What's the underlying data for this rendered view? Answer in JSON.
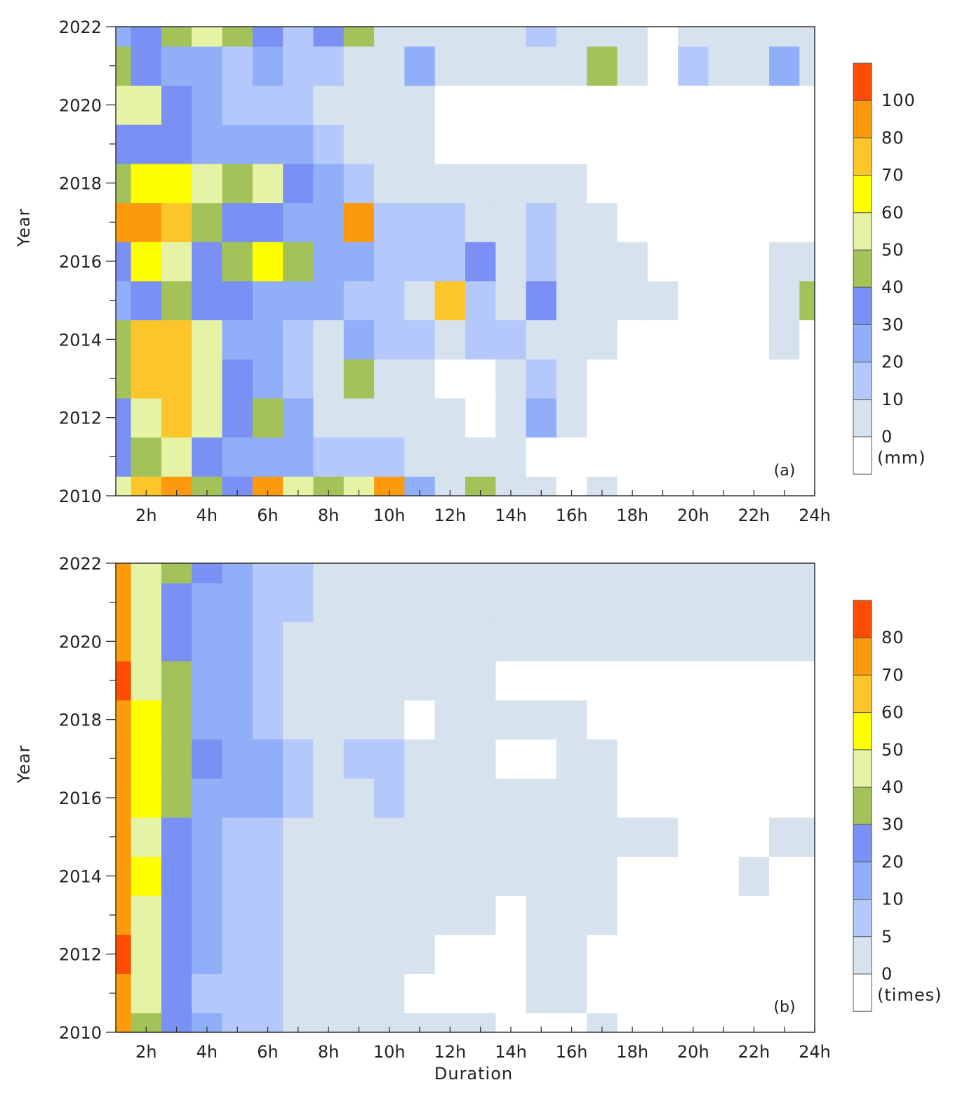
{
  "chart_data": [
    {
      "type": "heatmap",
      "panel_label": "(a)",
      "xlabel": "",
      "ylabel": "Year",
      "x_tick_labels": [
        "2h",
        "4h",
        "6h",
        "8h",
        "10h",
        "12h",
        "14h",
        "16h",
        "18h",
        "20h",
        "22h",
        "24h"
      ],
      "x_tick_values": [
        2,
        4,
        6,
        8,
        10,
        12,
        14,
        16,
        18,
        20,
        22,
        24
      ],
      "y_tick_labels": [
        "2010",
        "2012",
        "2014",
        "2016",
        "2018",
        "2020",
        "2022"
      ],
      "y_tick_values": [
        2010,
        2012,
        2014,
        2016,
        2018,
        2020,
        2022
      ],
      "xlim": [
        1,
        24
      ],
      "ylim": [
        2010,
        2022
      ],
      "colorbar": {
        "unit_label": "(mm)",
        "levels": [
          0,
          10,
          20,
          30,
          40,
          50,
          60,
          70,
          80,
          100
        ],
        "level_labels": [
          "0",
          "10",
          "20",
          "30",
          "40",
          "50",
          "60",
          "70",
          "80",
          "100"
        ],
        "colors": [
          "#ffffff",
          "#d6e2ee",
          "#b4c8fb",
          "#91aef8",
          "#7a90f4",
          "#a3c35a",
          "#e5f4a4",
          "#ffff00",
          "#fcc52a",
          "#fb9a0c",
          "#fe4c00"
        ]
      },
      "x": [
        1,
        2,
        3,
        4,
        5,
        6,
        7,
        8,
        9,
        10,
        11,
        12,
        13,
        14,
        15,
        16,
        17,
        18,
        19,
        20,
        21,
        22,
        23,
        24
      ],
      "y": [
        2010,
        2011,
        2012,
        2013,
        2014,
        2015,
        2016,
        2017,
        2018,
        2019,
        2020,
        2021,
        2022
      ],
      "z": [
        [
          55,
          72,
          90,
          45,
          32,
          95,
          58,
          45,
          52,
          88,
          30,
          8,
          45,
          8,
          2,
          0,
          8,
          0,
          0,
          0,
          0,
          0,
          0,
          0
        ],
        [
          32,
          48,
          55,
          38,
          22,
          30,
          25,
          18,
          12,
          15,
          8,
          5,
          5,
          3,
          0,
          0,
          0,
          0,
          0,
          0,
          0,
          0,
          0,
          0
        ],
        [
          35,
          55,
          72,
          55,
          35,
          42,
          25,
          10,
          8,
          5,
          5,
          2,
          0,
          5,
          25,
          5,
          0,
          0,
          0,
          0,
          0,
          0,
          0,
          0
        ],
        [
          42,
          72,
          75,
          55,
          35,
          28,
          18,
          10,
          45,
          10,
          5,
          0,
          0,
          5,
          15,
          5,
          0,
          0,
          0,
          0,
          0,
          0,
          0,
          0
        ],
        [
          45,
          75,
          75,
          52,
          30,
          25,
          15,
          10,
          22,
          15,
          12,
          8,
          12,
          12,
          8,
          8,
          5,
          0,
          0,
          0,
          0,
          0,
          5,
          0
        ],
        [
          25,
          40,
          45,
          35,
          32,
          30,
          28,
          22,
          18,
          15,
          10,
          75,
          15,
          10,
          35,
          8,
          5,
          5,
          8,
          0,
          0,
          0,
          10,
          45
        ],
        [
          40,
          62,
          55,
          38,
          45,
          62,
          48,
          28,
          30,
          15,
          15,
          15,
          35,
          10,
          15,
          10,
          5,
          5,
          0,
          0,
          0,
          0,
          5,
          5
        ],
        [
          85,
          100,
          75,
          42,
          40,
          38,
          30,
          30,
          85,
          18,
          15,
          12,
          10,
          8,
          12,
          5,
          5,
          0,
          0,
          0,
          0,
          0,
          0,
          0
        ],
        [
          42,
          70,
          68,
          58,
          45,
          52,
          35,
          22,
          12,
          10,
          8,
          5,
          5,
          5,
          5,
          5,
          0,
          0,
          0,
          0,
          0,
          0,
          0,
          0
        ],
        [
          40,
          38,
          32,
          28,
          25,
          22,
          22,
          18,
          10,
          5,
          5,
          0,
          0,
          0,
          0,
          0,
          0,
          0,
          0,
          0,
          0,
          0,
          0,
          0
        ],
        [
          52,
          55,
          35,
          28,
          15,
          18,
          15,
          10,
          5,
          5,
          5,
          0,
          0,
          0,
          0,
          0,
          0,
          0,
          0,
          0,
          0,
          0,
          0,
          0
        ],
        [
          42,
          32,
          30,
          28,
          15,
          22,
          18,
          15,
          10,
          8,
          25,
          10,
          5,
          5,
          5,
          5,
          45,
          5,
          0,
          15,
          5,
          5,
          25,
          10
        ],
        [
          28,
          35,
          42,
          52,
          48,
          38,
          12,
          35,
          48,
          10,
          8,
          8,
          5,
          5,
          15,
          5,
          5,
          5,
          0,
          5,
          5,
          5,
          5,
          5
        ]
      ]
    },
    {
      "type": "heatmap",
      "panel_label": "(b)",
      "xlabel": "Duration",
      "ylabel": "Year",
      "x_tick_labels": [
        "2h",
        "4h",
        "6h",
        "8h",
        "10h",
        "12h",
        "14h",
        "16h",
        "18h",
        "20h",
        "22h",
        "24h"
      ],
      "x_tick_values": [
        2,
        4,
        6,
        8,
        10,
        12,
        14,
        16,
        18,
        20,
        22,
        24
      ],
      "y_tick_labels": [
        "2010",
        "2012",
        "2014",
        "2016",
        "2018",
        "2020",
        "2022"
      ],
      "y_tick_values": [
        2010,
        2012,
        2014,
        2016,
        2018,
        2020,
        2022
      ],
      "xlim": [
        1,
        24
      ],
      "ylim": [
        2010,
        2022
      ],
      "colorbar": {
        "unit_label": "(times)",
        "levels": [
          0,
          5,
          10,
          20,
          30,
          40,
          50,
          60,
          70,
          80
        ],
        "level_labels": [
          "0",
          "5",
          "10",
          "20",
          "30",
          "40",
          "50",
          "60",
          "70",
          "80"
        ],
        "colors": [
          "#ffffff",
          "#d6e2ee",
          "#b4c8fb",
          "#91aef8",
          "#7a90f4",
          "#a3c35a",
          "#e5f4a4",
          "#ffff00",
          "#fcc52a",
          "#fb9a0c",
          "#fe4c00"
        ]
      },
      "x": [
        1,
        2,
        3,
        4,
        5,
        6,
        7,
        8,
        9,
        10,
        11,
        12,
        13,
        14,
        15,
        16,
        17,
        18,
        19,
        20,
        21,
        22,
        23,
        24
      ],
      "y": [
        2010,
        2011,
        2012,
        2013,
        2014,
        2015,
        2016,
        2017,
        2018,
        2019,
        2020,
        2021,
        2022
      ],
      "z": [
        [
          78,
          40,
          25,
          12,
          8,
          6,
          5,
          4,
          4,
          5,
          4,
          4,
          4,
          0,
          0,
          0,
          3,
          0,
          0,
          0,
          0,
          0,
          0,
          0
        ],
        [
          78,
          42,
          22,
          10,
          7,
          6,
          5,
          4,
          4,
          4,
          0,
          0,
          0,
          0,
          3,
          3,
          0,
          0,
          0,
          0,
          0,
          0,
          0,
          0
        ],
        [
          88,
          45,
          25,
          12,
          8,
          6,
          5,
          4,
          4,
          4,
          4,
          0,
          0,
          0,
          3,
          3,
          0,
          0,
          0,
          0,
          0,
          0,
          0,
          0
        ],
        [
          80,
          45,
          25,
          14,
          8,
          7,
          5,
          4,
          4,
          4,
          4,
          4,
          4,
          0,
          3,
          3,
          3,
          0,
          0,
          0,
          0,
          0,
          0,
          0
        ],
        [
          80,
          52,
          28,
          15,
          8,
          6,
          5,
          4,
          4,
          4,
          4,
          4,
          4,
          4,
          3,
          3,
          3,
          0,
          0,
          0,
          0,
          3,
          0,
          0
        ],
        [
          80,
          45,
          28,
          15,
          9,
          7,
          5,
          4,
          4,
          4,
          4,
          4,
          4,
          4,
          3,
          3,
          3,
          3,
          3,
          0,
          0,
          0,
          3,
          3
        ],
        [
          75,
          55,
          32,
          18,
          14,
          12,
          8,
          4,
          4,
          6,
          4,
          4,
          4,
          4,
          3,
          3,
          3,
          0,
          0,
          0,
          0,
          0,
          0,
          0
        ],
        [
          72,
          60,
          38,
          22,
          15,
          12,
          6,
          4,
          6,
          6,
          4,
          4,
          4,
          0,
          0,
          3,
          3,
          0,
          0,
          0,
          0,
          0,
          0,
          0
        ],
        [
          76,
          55,
          35,
          20,
          14,
          9,
          5,
          4,
          4,
          4,
          0,
          4,
          4,
          4,
          4,
          3,
          0,
          0,
          0,
          0,
          0,
          0,
          0,
          0
        ],
        [
          85,
          50,
          32,
          18,
          14,
          9,
          5,
          4,
          4,
          4,
          4,
          4,
          4,
          0,
          0,
          0,
          0,
          0,
          0,
          0,
          0,
          0,
          0,
          0
        ],
        [
          75,
          50,
          30,
          18,
          12,
          9,
          5,
          4,
          4,
          4,
          4,
          4,
          4,
          4,
          3,
          3,
          3,
          3,
          3,
          3,
          3,
          3,
          3,
          3
        ],
        [
          72,
          45,
          30,
          18,
          12,
          8,
          6,
          4,
          4,
          4,
          4,
          4,
          4,
          4,
          3,
          3,
          3,
          3,
          3,
          3,
          3,
          3,
          3,
          3
        ],
        [
          75,
          45,
          32,
          22,
          14,
          9,
          6,
          5,
          4,
          4,
          4,
          4,
          4,
          4,
          3,
          3,
          3,
          3,
          3,
          3,
          3,
          3,
          3,
          3
        ]
      ]
    }
  ]
}
